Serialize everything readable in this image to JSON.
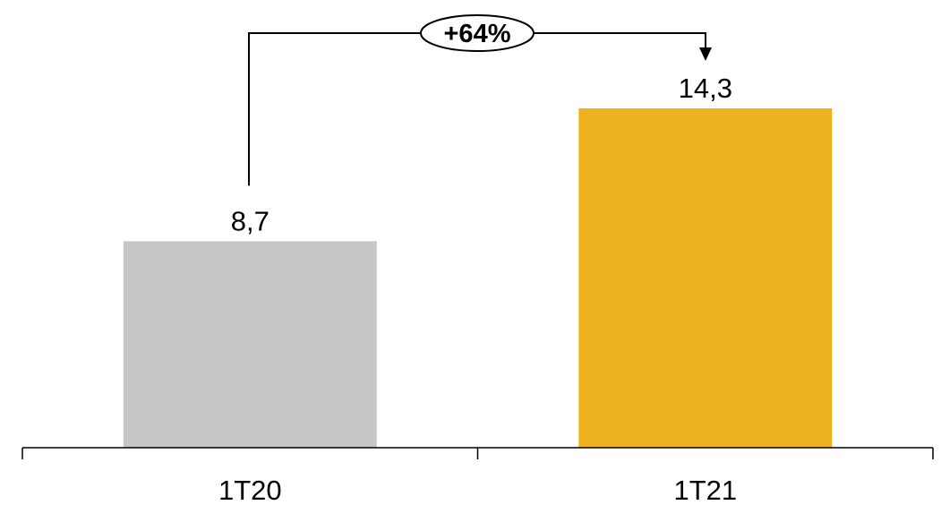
{
  "chart_data": {
    "type": "bar",
    "categories": [
      "1T20",
      "1T21"
    ],
    "values": [
      8.7,
      14.3
    ],
    "value_labels": [
      "8,7",
      "14,3"
    ],
    "bar_colors": [
      "#c6c6c6",
      "#edb31e"
    ],
    "annotation": {
      "text": "+64%",
      "from": "1T20",
      "to": "1T21"
    },
    "title": "",
    "xlabel": "",
    "ylabel": "",
    "ylim": [
      0,
      14.3
    ],
    "grid": false
  }
}
